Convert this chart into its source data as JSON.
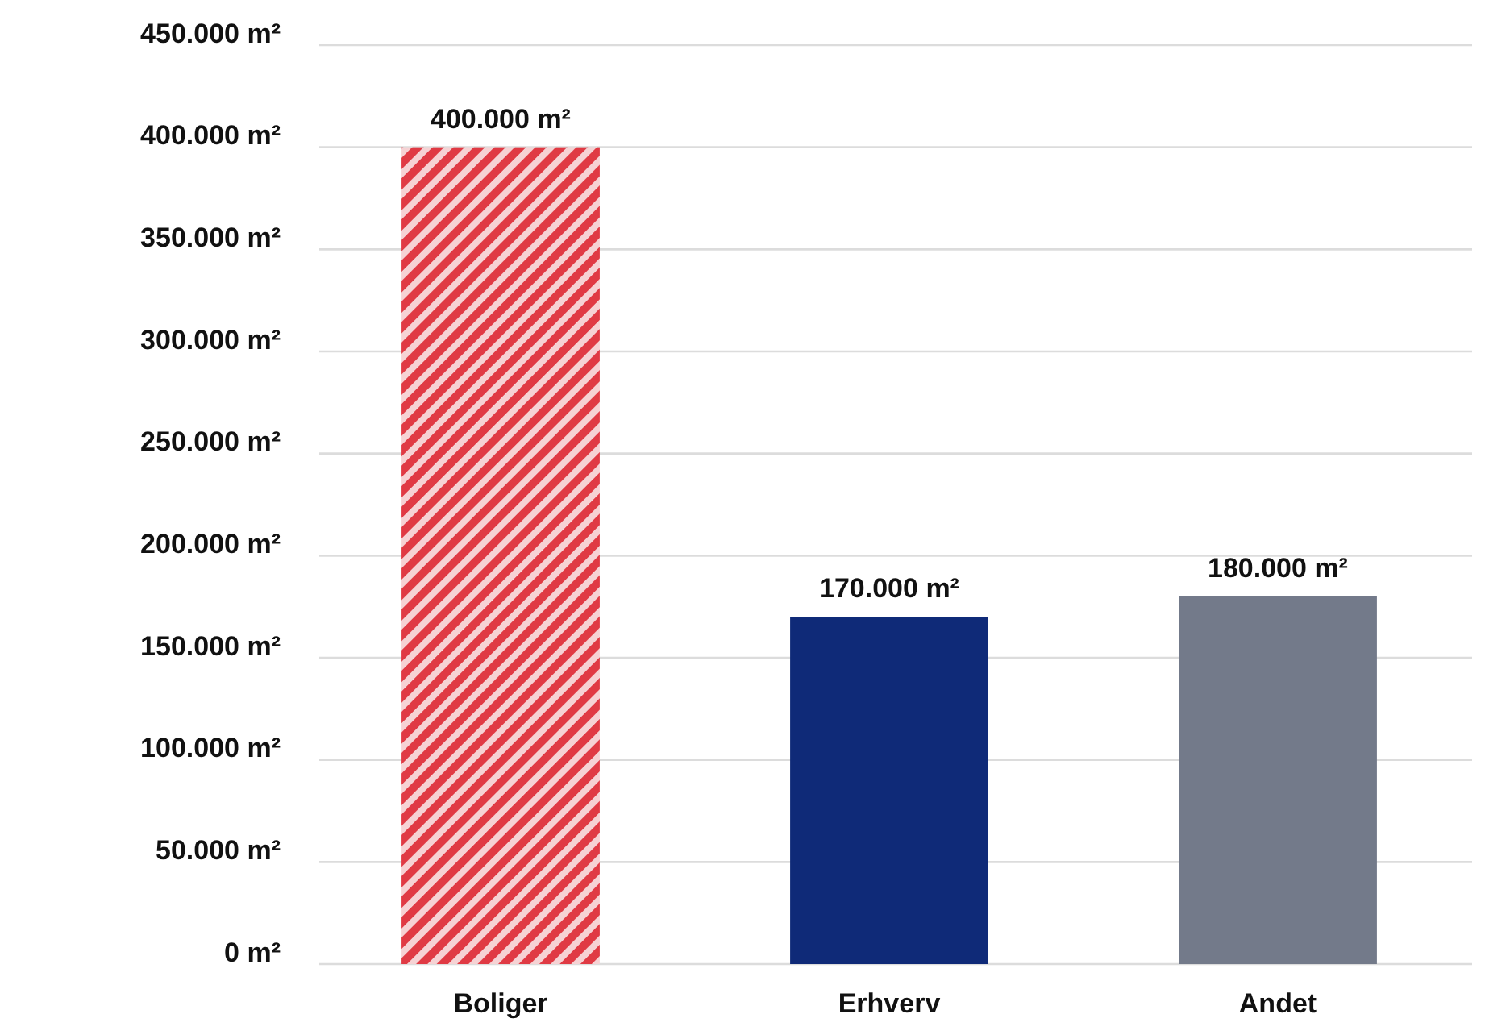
{
  "chart_data": {
    "type": "bar",
    "categories": [
      "Boliger",
      "Erhverv",
      "Andet"
    ],
    "values": [
      400000,
      170000,
      180000
    ],
    "colors": [
      "#e03a44",
      "#0f2a78",
      "#737a8a"
    ],
    "value_labels": [
      "400.000 m²",
      "170.000 m²",
      "180.000 m²"
    ],
    "ylim": [
      0,
      450000
    ],
    "yticks": [
      {
        "value": 0,
        "label": "0 m²"
      },
      {
        "value": 50000,
        "label": "50.000 m²"
      },
      {
        "value": 100000,
        "label": "100.000 m²"
      },
      {
        "value": 150000,
        "label": "150.000 m²"
      },
      {
        "value": 200000,
        "label": "200.000 m²"
      },
      {
        "value": 250000,
        "label": "250.000 m²"
      },
      {
        "value": 300000,
        "label": "300.000 m²"
      },
      {
        "value": 350000,
        "label": "350.000 m²"
      },
      {
        "value": 400000,
        "label": "400.000 m²"
      },
      {
        "value": 450000,
        "label": "450.000 m²"
      }
    ],
    "grid": "y"
  }
}
